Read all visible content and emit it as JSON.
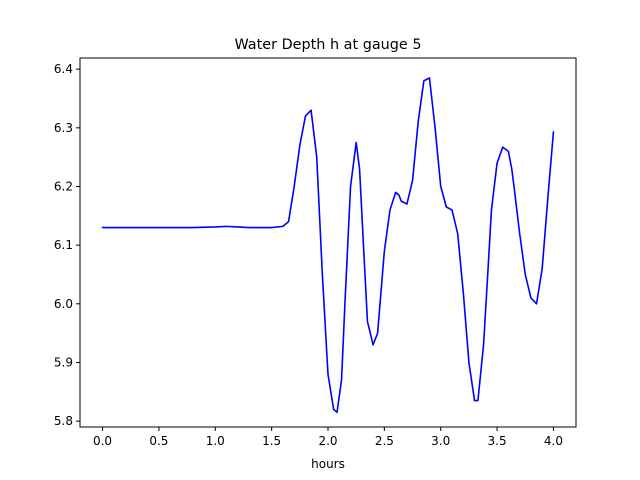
{
  "chart_data": {
    "type": "line",
    "title": "Water Depth h at gauge 5",
    "xlabel": "hours",
    "ylabel": "",
    "xlim": [
      -0.2,
      4.2
    ],
    "ylim": [
      5.79,
      6.419
    ],
    "xticks": [
      0.0,
      0.5,
      1.0,
      1.5,
      2.0,
      2.5,
      3.0,
      3.5,
      4.0
    ],
    "xtick_labels": [
      "0.0",
      "0.5",
      "1.0",
      "1.5",
      "2.0",
      "2.5",
      "3.0",
      "3.5",
      "4.0"
    ],
    "yticks": [
      5.8,
      5.9,
      6.0,
      6.1,
      6.2,
      6.3,
      6.4
    ],
    "ytick_labels": [
      "5.8",
      "5.9",
      "6.0",
      "6.1",
      "6.2",
      "6.3",
      "6.4"
    ],
    "grid": false,
    "series": [
      {
        "name": "",
        "color": "#0000ff",
        "x": [
          0.0,
          0.2,
          0.4,
          0.6,
          0.8,
          1.0,
          1.1,
          1.2,
          1.3,
          1.4,
          1.5,
          1.6,
          1.65,
          1.7,
          1.75,
          1.8,
          1.85,
          1.9,
          1.95,
          2.0,
          2.05,
          2.08,
          2.12,
          2.15,
          2.2,
          2.25,
          2.28,
          2.32,
          2.35,
          2.4,
          2.44,
          2.47,
          2.5,
          2.55,
          2.6,
          2.63,
          2.65,
          2.7,
          2.75,
          2.8,
          2.85,
          2.9,
          2.95,
          3.0,
          3.05,
          3.1,
          3.15,
          3.2,
          3.25,
          3.3,
          3.33,
          3.38,
          3.42,
          3.45,
          3.5,
          3.55,
          3.6,
          3.63,
          3.65,
          3.7,
          3.75,
          3.8,
          3.85,
          3.9,
          3.95,
          4.0
        ],
        "y": [
          6.13,
          6.13,
          6.13,
          6.13,
          6.13,
          6.131,
          6.132,
          6.131,
          6.13,
          6.13,
          6.13,
          6.132,
          6.14,
          6.2,
          6.27,
          6.32,
          6.33,
          6.25,
          6.05,
          5.88,
          5.82,
          5.815,
          5.87,
          6.0,
          6.2,
          6.275,
          6.23,
          6.08,
          5.97,
          5.93,
          5.95,
          6.02,
          6.09,
          6.16,
          6.19,
          6.185,
          6.175,
          6.17,
          6.21,
          6.31,
          6.38,
          6.385,
          6.3,
          6.2,
          6.165,
          6.16,
          6.12,
          6.02,
          5.9,
          5.835,
          5.835,
          5.93,
          6.06,
          6.16,
          6.24,
          6.267,
          6.26,
          6.23,
          6.2,
          6.12,
          6.05,
          6.01,
          6.0,
          6.06,
          6.18,
          6.293
        ]
      }
    ]
  }
}
